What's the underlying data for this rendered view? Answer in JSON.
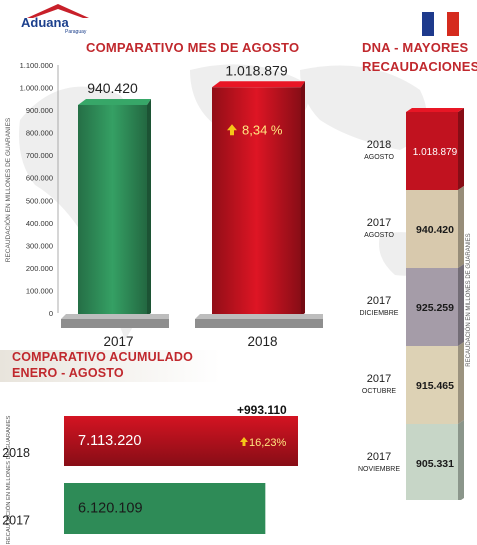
{
  "header": {
    "logo_name": "Aduana",
    "logo_sub": "Paraguay",
    "flag_colors": [
      "#1e3a8c",
      "#ffffff",
      "#d52b1e"
    ]
  },
  "colors": {
    "green": "#2e8b57",
    "red": "#c1121f",
    "title": "#c0282d"
  },
  "chart_data": [
    {
      "type": "bar",
      "title": "COMPARATIVO MES DE AGOSTO",
      "ylabel": "RECAUDACIÓN EN MILLONES DE GUARANIES",
      "ylim": [
        0,
        1100000
      ],
      "yticks": [
        "0",
        "100.000",
        "200.000",
        "300.000",
        "400.000",
        "500.000",
        "600.000",
        "700.000",
        "800.000",
        "900.000",
        "1.000.000",
        "1.100.000"
      ],
      "categories": [
        "2017",
        "2018"
      ],
      "values": [
        940420,
        1018879
      ],
      "value_labels": [
        "940.420",
        "1.018.879"
      ],
      "annotation": "8,34 %"
    },
    {
      "type": "bar",
      "orientation": "horizontal",
      "title": "COMPARATIVO ACUMULADO ENERO - AGOSTO",
      "title_line1": "COMPARATIVO ACUMULADO",
      "title_line2": "ENERO - AGOSTO",
      "ylabel": "RECAUDACIÓN EN MILLONES DE GUARANIES",
      "categories": [
        "2018",
        "2017"
      ],
      "values": [
        7113220,
        6120109
      ],
      "value_labels": [
        "7.113.220",
        "6.120.109"
      ],
      "difference_label": "+993.110",
      "growth_label": "16,23%"
    },
    {
      "type": "bar",
      "orientation": "stacked-column",
      "title": "DNA - MAYORES RECAUDACIONES",
      "title_line1": "DNA - MAYORES",
      "title_line2": "RECAUDACIONES",
      "ylabel": "RECAUDACIÓN EN MILLONES DE GUARANIES",
      "segments": [
        {
          "year": "2018",
          "month": "AGOSTO",
          "value": 1018879,
          "label": "1.018.879",
          "color": "#c1121f"
        },
        {
          "year": "2017",
          "month": "AGOSTO",
          "value": 940420,
          "label": "940.420",
          "color": "#d8c9ad"
        },
        {
          "year": "2017",
          "month": "DICIEMBRE",
          "value": 925259,
          "label": "925.259",
          "color": "#a59ca8"
        },
        {
          "year": "2017",
          "month": "OCTUBRE",
          "value": 915465,
          "label": "915.465",
          "color": "#ddd2b5"
        },
        {
          "year": "2017",
          "month": "NOVIEMBRE",
          "value": 905331,
          "label": "905.331",
          "color": "#c7d6c7"
        }
      ]
    }
  ]
}
